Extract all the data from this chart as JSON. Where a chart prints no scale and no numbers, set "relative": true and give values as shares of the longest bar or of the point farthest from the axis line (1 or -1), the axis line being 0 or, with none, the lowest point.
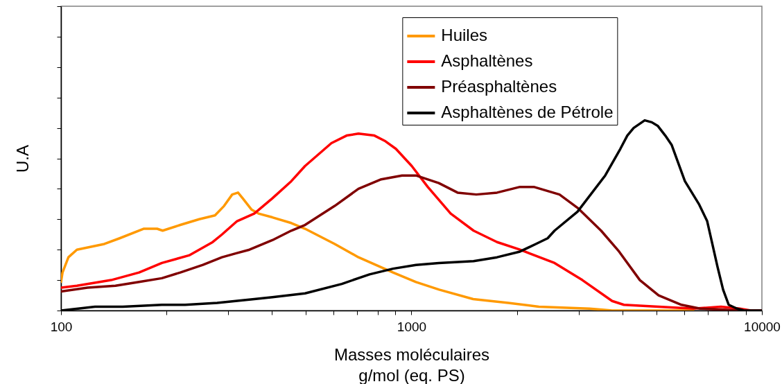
{
  "chart_data": {
    "type": "line",
    "xlabel": "Masses moléculaires\ng/mol (eq. PS)",
    "ylabel": "U.A",
    "relative": true,
    "log": "x",
    "xlim": [
      100,
      10000
    ],
    "xticks": [
      100,
      {
        "value": 200,
        "label": null
      },
      {
        "value": 300,
        "label": null
      },
      {
        "value": 400,
        "label": null
      },
      {
        "value": 500,
        "label": null
      },
      {
        "value": 600,
        "label": null
      },
      {
        "value": 700,
        "label": null
      },
      {
        "value": 800,
        "label": null
      },
      {
        "value": 900,
        "label": null
      },
      1000,
      {
        "value": 2000,
        "label": null
      },
      {
        "value": 3000,
        "label": null
      },
      {
        "value": 4000,
        "label": null
      },
      {
        "value": 5000,
        "label": null
      },
      {
        "value": 6000,
        "label": null
      },
      {
        "value": 7000,
        "label": null
      },
      {
        "value": 8000,
        "label": null
      },
      {
        "value": 9000,
        "label": null
      },
      10000
    ],
    "grid": false,
    "legend": "top right",
    "series": [
      {
        "name": "Huiles",
        "color": "#ff9900",
        "x": [
          100,
          101,
          105,
          111,
          133,
          147,
          172,
          188,
          195,
          219,
          248,
          275,
          292,
          308,
          320,
          330,
          350,
          366,
          401,
          454,
          497,
          604,
          706,
          886,
          1030,
          1200,
          1500,
          1890,
          2310,
          3220,
          3740,
          6370
        ],
        "values": [
          0.15,
          0.2,
          0.28,
          0.32,
          0.35,
          0.38,
          0.43,
          0.43,
          0.42,
          0.45,
          0.48,
          0.5,
          0.55,
          0.61,
          0.62,
          0.59,
          0.53,
          0.51,
          0.49,
          0.46,
          0.43,
          0.35,
          0.28,
          0.2,
          0.15,
          0.11,
          0.06,
          0.04,
          0.02,
          0.01,
          0,
          0
        ]
      },
      {
        "name": "Asphaltènes",
        "color": "#ff0000",
        "x": [
          100,
          111,
          139,
          167,
          194,
          232,
          271,
          288,
          318,
          356,
          401,
          454,
          497,
          591,
          653,
          706,
          784,
          843,
          903,
          1002,
          1113,
          1294,
          1504,
          1755,
          2040,
          2561,
          3074,
          3738,
          4039,
          5073,
          6370,
          7643,
          8643,
          9297,
          10000
        ],
        "values": [
          0.12,
          0.13,
          0.16,
          0.2,
          0.25,
          0.29,
          0.36,
          0.4,
          0.47,
          0.51,
          0.59,
          0.68,
          0.76,
          0.88,
          0.92,
          0.93,
          0.92,
          0.89,
          0.85,
          0.76,
          0.65,
          0.51,
          0.42,
          0.36,
          0.32,
          0.25,
          0.16,
          0.05,
          0.03,
          0.02,
          0.01,
          0.02,
          0.01,
          0,
          0
        ]
      },
      {
        "name": "Préasphaltènes",
        "color": "#800000",
        "x": [
          100,
          119,
          143,
          167,
          194,
          219,
          254,
          288,
          315,
          345,
          401,
          454,
          497,
          604,
          706,
          820,
          940,
          1030,
          1197,
          1354,
          1531,
          1755,
          2040,
          2234,
          2645,
          2978,
          3476,
          3913,
          4485,
          5073,
          5896,
          6667,
          8762
        ],
        "values": [
          0.1,
          0.12,
          0.13,
          0.15,
          0.17,
          0.2,
          0.24,
          0.28,
          0.3,
          0.32,
          0.37,
          0.42,
          0.45,
          0.55,
          0.64,
          0.69,
          0.71,
          0.71,
          0.67,
          0.62,
          0.61,
          0.62,
          0.65,
          0.65,
          0.61,
          0.54,
          0.42,
          0.31,
          0.16,
          0.08,
          0.03,
          0.01,
          0
        ]
      },
      {
        "name": "Asphaltènes de Pétrole",
        "color": "#000000",
        "x": [
          100,
          125,
          150,
          194,
          226,
          279,
          315,
          356,
          401,
          497,
          633,
          759,
          886,
          1030,
          1197,
          1504,
          1755,
          2040,
          2265,
          2447,
          2561,
          2978,
          3572,
          3945,
          4130,
          4305,
          4630,
          4850,
          5050,
          5300,
          5530,
          6030,
          6610,
          6980,
          7200,
          7470,
          7750,
          8040,
          8490,
          8880,
          10000
        ],
        "values": [
          0,
          0.02,
          0.02,
          0.03,
          0.03,
          0.04,
          0.05,
          0.06,
          0.07,
          0.09,
          0.14,
          0.19,
          0.22,
          0.24,
          0.25,
          0.26,
          0.28,
          0.31,
          0.35,
          0.38,
          0.42,
          0.52,
          0.71,
          0.85,
          0.92,
          0.96,
          1,
          0.99,
          0.97,
          0.92,
          0.87,
          0.68,
          0.56,
          0.47,
          0.36,
          0.23,
          0.11,
          0.03,
          0.01,
          0,
          0
        ]
      }
    ]
  }
}
